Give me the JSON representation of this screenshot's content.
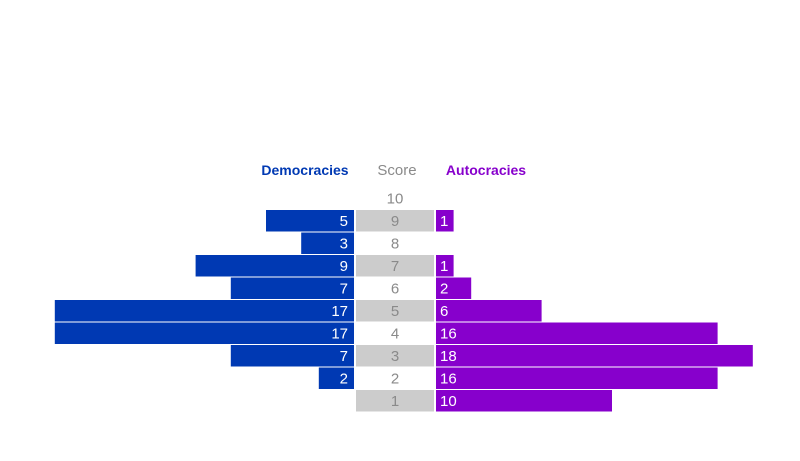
{
  "chart_data": {
    "type": "bar",
    "orientation": "horizontal-diverging",
    "headers": {
      "left": "Democracies",
      "center": "Score",
      "right": "Autocracies"
    },
    "categories": [
      "10",
      "9",
      "8",
      "7",
      "6",
      "5",
      "4",
      "3",
      "2",
      "1"
    ],
    "series": [
      {
        "name": "Democracies",
        "values": [
          0,
          5,
          3,
          9,
          7,
          17,
          17,
          7,
          2,
          0
        ]
      },
      {
        "name": "Autocracies",
        "values": [
          0,
          1,
          0,
          1,
          2,
          6,
          16,
          18,
          16,
          10
        ]
      }
    ],
    "colors": {
      "democracies": "#0039b3",
      "autocracies": "#8700cc",
      "score_band": "#cccccc",
      "score_text": "#8a8a8a",
      "bar_text": "#ffffff"
    },
    "xlim": [
      0,
      18
    ],
    "grid": false,
    "legend": "column headers above bars"
  }
}
